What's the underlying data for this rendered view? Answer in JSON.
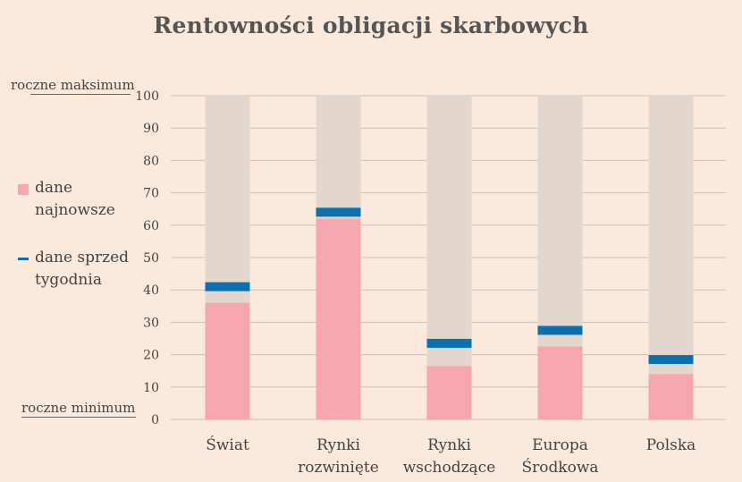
{
  "title": "Rentowności obligacji skarbowych",
  "labels": {
    "annual_max": "roczne maksimum",
    "annual_min": "roczne minimum"
  },
  "legend": {
    "latest_line1": "dane",
    "latest_line2": "najnowsze",
    "week_line1": "dane sprzed",
    "week_line2": "tygodnia"
  },
  "colors": {
    "background": "#fbe9dc",
    "range_bar": "#e3d6cc",
    "latest": "#f6a6ad",
    "week_ago": "#0c6fae",
    "grid": "#c9c1bc",
    "text": "#444444"
  },
  "categories_display": [
    [
      "Świat",
      ""
    ],
    [
      "Rynki",
      "rozwinięte"
    ],
    [
      "Rynki",
      "wschodzące"
    ],
    [
      "Europa",
      "Środkowa"
    ],
    [
      "Polska",
      ""
    ]
  ],
  "chart_data": {
    "type": "bar",
    "title": "Rentowności obligacji skarbowych",
    "categories": [
      "Świat",
      "Rynki rozwinięte",
      "Rynki wschodzące",
      "Europa Środkowa",
      "Polska"
    ],
    "series": [
      {
        "name": "dane najnowsze",
        "values": [
          36,
          62,
          16.5,
          22.5,
          14
        ]
      },
      {
        "name": "dane sprzed tygodnia",
        "values": [
          41,
          64,
          23.5,
          27.5,
          18.5
        ]
      }
    ],
    "ylim": [
      0,
      100
    ],
    "yticks": [
      0,
      10,
      20,
      30,
      40,
      50,
      60,
      70,
      80,
      90,
      100
    ],
    "grid": true,
    "legend": "left"
  }
}
